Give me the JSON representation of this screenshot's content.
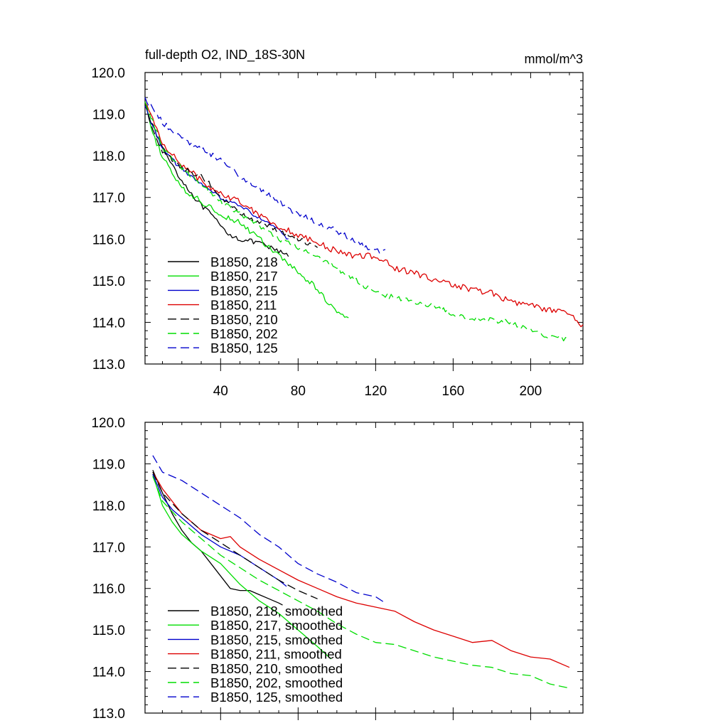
{
  "colors": {
    "black": "#000000",
    "green": "#00dd00",
    "blue": "#0000cc",
    "red": "#dd0000"
  },
  "chart_data": [
    {
      "type": "line",
      "title": "full-depth O2, IND_18S-30N",
      "units": "mmol/m^3",
      "xlim": [
        1,
        227
      ],
      "ylim": [
        113,
        120
      ],
      "xticks": [
        40,
        80,
        120,
        160,
        200
      ],
      "xtick_labels": [
        "40",
        "80",
        "120",
        "160",
        "200"
      ],
      "yticks": [
        113,
        114,
        115,
        116,
        117,
        118,
        119,
        120
      ],
      "ytick_labels": [
        "113.0",
        "114.0",
        "115.0",
        "116.0",
        "117.0",
        "118.0",
        "119.0",
        "120.0"
      ],
      "legend_position": "lower-left",
      "series": [
        {
          "name": "B1850, 218",
          "color": "#000000",
          "dash": "solid",
          "noise": 0.06,
          "x": [
            1,
            5,
            10,
            15,
            20,
            25,
            30,
            35,
            40,
            45,
            50,
            55,
            60,
            65,
            70,
            75
          ],
          "y": [
            119.3,
            118.7,
            118.2,
            117.8,
            117.4,
            117.1,
            116.8,
            116.6,
            116.3,
            116.1,
            116.0,
            115.95,
            115.9,
            115.8,
            115.7,
            115.6
          ]
        },
        {
          "name": "B1850, 217",
          "color": "#00dd00",
          "dash": "solid",
          "noise": 0.07,
          "x": [
            1,
            5,
            10,
            15,
            20,
            30,
            40,
            50,
            60,
            70,
            80,
            90,
            95,
            100,
            106
          ],
          "y": [
            119.3,
            118.5,
            118.0,
            117.6,
            117.2,
            116.9,
            116.6,
            116.4,
            116.0,
            115.6,
            115.2,
            114.8,
            114.5,
            114.3,
            114.1
          ]
        },
        {
          "name": "B1850, 215",
          "color": "#0000cc",
          "dash": "solid",
          "noise": 0.05,
          "x": [
            1,
            5,
            10,
            15,
            20,
            30,
            40,
            50,
            60,
            70,
            75
          ],
          "y": [
            119.2,
            118.7,
            118.2,
            117.9,
            117.7,
            117.3,
            117.0,
            116.8,
            116.5,
            116.2,
            116.0
          ]
        },
        {
          "name": "B1850, 211",
          "color": "#dd0000",
          "dash": "solid",
          "noise": 0.08,
          "x": [
            1,
            10,
            20,
            30,
            40,
            50,
            60,
            70,
            80,
            90,
            100,
            110,
            120,
            130,
            140,
            150,
            160,
            170,
            180,
            190,
            200,
            210,
            220,
            227
          ],
          "y": [
            119.3,
            118.3,
            117.8,
            117.4,
            117.1,
            116.9,
            116.6,
            116.3,
            116.1,
            115.9,
            115.7,
            115.6,
            115.6,
            115.3,
            115.2,
            115.0,
            114.9,
            114.8,
            114.7,
            114.5,
            114.4,
            114.3,
            114.2,
            113.9
          ]
        },
        {
          "name": "B1850, 210",
          "color": "#000000",
          "dash": "dash",
          "noise": 0.06,
          "x": [
            1,
            5,
            10,
            20,
            30,
            35,
            40,
            45,
            50,
            55,
            60,
            65,
            70,
            75,
            80,
            85,
            90
          ],
          "y": [
            119.3,
            118.6,
            118.1,
            117.7,
            117.5,
            117.3,
            117.0,
            116.8,
            116.6,
            116.5,
            116.4,
            116.3,
            116.2,
            116.1,
            116.0,
            115.9,
            115.8
          ]
        },
        {
          "name": "B1850, 202",
          "color": "#00dd00",
          "dash": "dash",
          "noise": 0.06,
          "x": [
            1,
            10,
            20,
            30,
            40,
            50,
            60,
            70,
            80,
            90,
            100,
            110,
            120,
            130,
            140,
            150,
            160,
            170,
            180,
            190,
            200,
            210,
            220
          ],
          "y": [
            119.3,
            118.2,
            117.7,
            117.3,
            116.9,
            116.6,
            116.3,
            116.0,
            115.8,
            115.6,
            115.3,
            115.0,
            114.7,
            114.6,
            114.5,
            114.4,
            114.2,
            114.1,
            114.05,
            114.0,
            113.8,
            113.65,
            113.6
          ]
        },
        {
          "name": "B1850, 125",
          "color": "#0000cc",
          "dash": "dash",
          "noise": 0.07,
          "x": [
            1,
            5,
            10,
            15,
            20,
            25,
            30,
            40,
            50,
            60,
            70,
            80,
            90,
            100,
            110,
            115,
            120,
            125
          ],
          "y": [
            119.4,
            119.1,
            118.8,
            118.6,
            118.4,
            118.3,
            118.2,
            117.9,
            117.5,
            117.2,
            116.9,
            116.6,
            116.4,
            116.2,
            115.9,
            115.8,
            115.7,
            115.7
          ]
        }
      ]
    },
    {
      "type": "line",
      "title": "",
      "xlim": [
        1,
        227
      ],
      "ylim": [
        113,
        120
      ],
      "xticks": [
        40,
        80,
        120,
        160,
        200
      ],
      "yticks": [
        113,
        114,
        115,
        116,
        117,
        118,
        119,
        120
      ],
      "ytick_labels": [
        "113.0",
        "114.0",
        "115.0",
        "116.0",
        "117.0",
        "118.0",
        "119.0",
        "120.0"
      ],
      "legend_position": "lower-left",
      "series": [
        {
          "name": "B1850, 218, smoothed",
          "color": "#000000",
          "dash": "solid",
          "x": [
            5,
            10,
            15,
            20,
            25,
            30,
            35,
            40,
            45,
            50,
            55,
            60,
            65,
            70,
            72
          ],
          "y": [
            118.85,
            118.3,
            117.8,
            117.4,
            117.1,
            116.9,
            116.6,
            116.3,
            116.0,
            115.95,
            115.95,
            115.85,
            115.75,
            115.65,
            115.6
          ]
        },
        {
          "name": "B1850, 217, smoothed",
          "color": "#00dd00",
          "dash": "solid",
          "x": [
            5,
            10,
            15,
            20,
            30,
            40,
            50,
            60,
            70,
            80,
            90,
            97
          ],
          "y": [
            118.75,
            118.0,
            117.6,
            117.3,
            116.9,
            116.6,
            116.1,
            115.7,
            115.4,
            115.0,
            114.6,
            114.3
          ]
        },
        {
          "name": "B1850, 215, smoothed",
          "color": "#0000cc",
          "dash": "solid",
          "x": [
            5,
            10,
            15,
            20,
            30,
            40,
            50,
            60,
            70,
            74
          ],
          "y": [
            118.75,
            118.2,
            117.9,
            117.7,
            117.3,
            117.0,
            116.8,
            116.5,
            116.2,
            116.05
          ]
        },
        {
          "name": "B1850, 211, smoothed",
          "color": "#dd0000",
          "dash": "solid",
          "x": [
            5,
            10,
            20,
            30,
            40,
            45,
            50,
            60,
            70,
            80,
            90,
            100,
            110,
            120,
            130,
            140,
            150,
            160,
            170,
            180,
            190,
            200,
            210,
            220
          ],
          "y": [
            118.8,
            118.4,
            117.8,
            117.4,
            117.2,
            117.25,
            117.0,
            116.7,
            116.45,
            116.2,
            116.0,
            115.8,
            115.65,
            115.55,
            115.45,
            115.2,
            115.0,
            114.85,
            114.7,
            114.75,
            114.5,
            114.35,
            114.3,
            114.1
          ]
        },
        {
          "name": "B1850, 210, smoothed",
          "color": "#000000",
          "dash": "dash",
          "x": [
            5,
            10,
            20,
            30,
            40,
            50,
            60,
            70,
            80,
            90
          ],
          "y": [
            118.8,
            118.3,
            117.8,
            117.4,
            117.1,
            116.8,
            116.5,
            116.2,
            115.95,
            115.75
          ]
        },
        {
          "name": "B1850, 202, smoothed",
          "color": "#00dd00",
          "dash": "dash",
          "x": [
            5,
            10,
            20,
            30,
            40,
            50,
            60,
            70,
            80,
            90,
            100,
            110,
            120,
            130,
            140,
            150,
            160,
            170,
            180,
            190,
            200,
            210,
            220
          ],
          "y": [
            118.7,
            118.1,
            117.6,
            117.2,
            116.8,
            116.5,
            116.2,
            115.95,
            115.7,
            115.45,
            115.15,
            114.9,
            114.7,
            114.65,
            114.5,
            114.35,
            114.25,
            114.15,
            114.1,
            113.95,
            113.9,
            113.7,
            113.6
          ]
        },
        {
          "name": "B1850, 125, smoothed",
          "color": "#0000cc",
          "dash": "dash",
          "x": [
            5,
            10,
            20,
            30,
            40,
            50,
            60,
            70,
            80,
            90,
            100,
            110,
            120,
            125
          ],
          "y": [
            119.2,
            118.8,
            118.6,
            118.3,
            118.0,
            117.7,
            117.3,
            117.0,
            116.6,
            116.35,
            116.15,
            115.9,
            115.8,
            115.65
          ]
        }
      ]
    }
  ]
}
